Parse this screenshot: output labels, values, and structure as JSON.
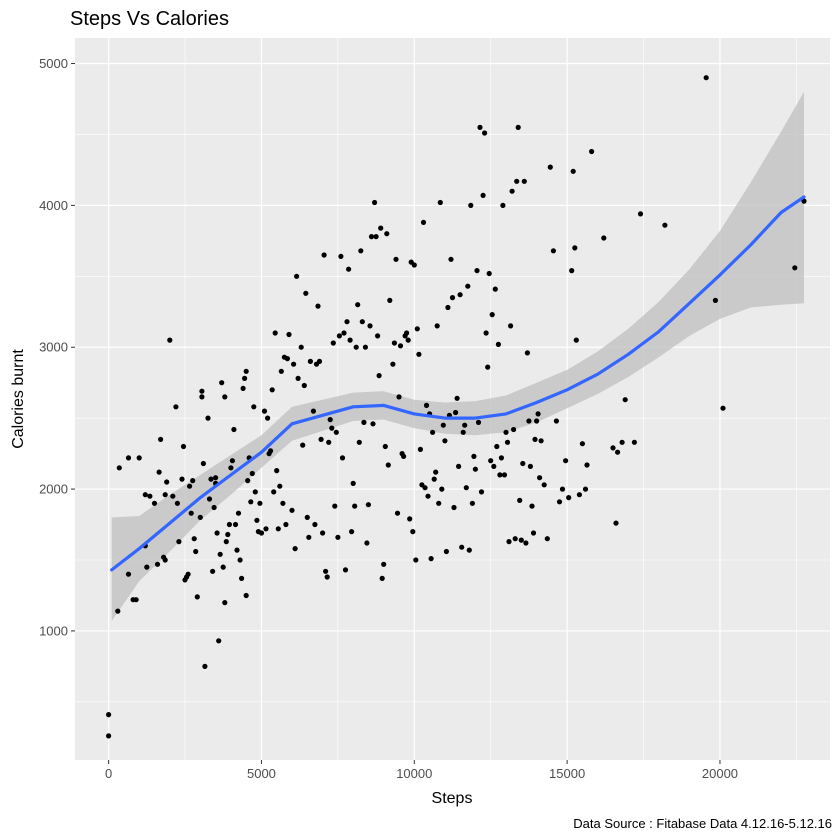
{
  "chart_data": {
    "type": "scatter",
    "title": "Steps Vs Calories",
    "xlabel": "Steps",
    "ylabel": "Calories burnt",
    "caption": "Data Source : Fitabase Data 4.12.16-5.12.16",
    "xlim": [
      -1100,
      23600
    ],
    "ylim": [
      90,
      5180
    ],
    "x_ticks": [
      0,
      5000,
      10000,
      15000,
      20000
    ],
    "y_ticks": [
      1000,
      2000,
      3000,
      4000,
      5000
    ],
    "grid": true,
    "legend": "none",
    "colors": {
      "panel": "#ebebeb",
      "grid": "#ffffff",
      "points": "#000000",
      "smooth_line": "#3366ff",
      "confidence_band": "#bfbfbf"
    },
    "points": [
      [
        0,
        260
      ],
      [
        0,
        410
      ],
      [
        300,
        1140
      ],
      [
        350,
        2150
      ],
      [
        650,
        1400
      ],
      [
        650,
        2220
      ],
      [
        800,
        1220
      ],
      [
        900,
        1220
      ],
      [
        1000,
        2220
      ],
      [
        1200,
        1960
      ],
      [
        1200,
        1600
      ],
      [
        1250,
        1450
      ],
      [
        1350,
        1950
      ],
      [
        1500,
        1900
      ],
      [
        1600,
        1470
      ],
      [
        1650,
        2120
      ],
      [
        1700,
        2350
      ],
      [
        1800,
        1520
      ],
      [
        1850,
        1500
      ],
      [
        1850,
        1960
      ],
      [
        1900,
        2050
      ],
      [
        2000,
        3050
      ],
      [
        2100,
        1950
      ],
      [
        2200,
        2580
      ],
      [
        2250,
        1900
      ],
      [
        2300,
        1630
      ],
      [
        2400,
        2070
      ],
      [
        2450,
        2300
      ],
      [
        2500,
        1360
      ],
      [
        2550,
        1380
      ],
      [
        2600,
        1400
      ],
      [
        2650,
        2020
      ],
      [
        2700,
        1830
      ],
      [
        2750,
        2060
      ],
      [
        2800,
        1650
      ],
      [
        2850,
        1560
      ],
      [
        2900,
        1240
      ],
      [
        3000,
        1800
      ],
      [
        3050,
        2690
      ],
      [
        3050,
        2650
      ],
      [
        3100,
        2180
      ],
      [
        3150,
        750
      ],
      [
        3250,
        2500
      ],
      [
        3300,
        1930
      ],
      [
        3350,
        2070
      ],
      [
        3400,
        1420
      ],
      [
        3450,
        1870
      ],
      [
        3500,
        2040
      ],
      [
        3500,
        2080
      ],
      [
        3550,
        1690
      ],
      [
        3600,
        930
      ],
      [
        3650,
        1540
      ],
      [
        3700,
        2750
      ],
      [
        3750,
        1450
      ],
      [
        3800,
        2650
      ],
      [
        3800,
        1200
      ],
      [
        3850,
        1630
      ],
      [
        3900,
        1680
      ],
      [
        3950,
        1750
      ],
      [
        4000,
        2150
      ],
      [
        4050,
        2200
      ],
      [
        4100,
        2420
      ],
      [
        4150,
        1750
      ],
      [
        4200,
        1570
      ],
      [
        4250,
        1830
      ],
      [
        4300,
        1500
      ],
      [
        4350,
        1370
      ],
      [
        4400,
        2710
      ],
      [
        4450,
        2780
      ],
      [
        4500,
        2830
      ],
      [
        4500,
        1250
      ],
      [
        4550,
        2060
      ],
      [
        4600,
        2220
      ],
      [
        4650,
        1910
      ],
      [
        4700,
        2110
      ],
      [
        4750,
        2580
      ],
      [
        4800,
        1980
      ],
      [
        4850,
        1780
      ],
      [
        4900,
        1700
      ],
      [
        4950,
        1900
      ],
      [
        5000,
        1690
      ],
      [
        5100,
        2550
      ],
      [
        5150,
        1720
      ],
      [
        5200,
        2500
      ],
      [
        5250,
        2250
      ],
      [
        5300,
        2270
      ],
      [
        5350,
        2700
      ],
      [
        5400,
        1980
      ],
      [
        5450,
        3100
      ],
      [
        5500,
        2130
      ],
      [
        5550,
        1720
      ],
      [
        5600,
        2020
      ],
      [
        5650,
        2830
      ],
      [
        5700,
        1900
      ],
      [
        5750,
        2930
      ],
      [
        5800,
        1750
      ],
      [
        5850,
        2920
      ],
      [
        5900,
        3090
      ],
      [
        6000,
        1850
      ],
      [
        6050,
        2880
      ],
      [
        6100,
        1580
      ],
      [
        6150,
        3500
      ],
      [
        6200,
        2780
      ],
      [
        6300,
        3000
      ],
      [
        6350,
        2310
      ],
      [
        6400,
        2730
      ],
      [
        6450,
        3380
      ],
      [
        6500,
        1800
      ],
      [
        6550,
        1660
      ],
      [
        6600,
        2900
      ],
      [
        6700,
        2550
      ],
      [
        6750,
        1750
      ],
      [
        6800,
        2880
      ],
      [
        6850,
        3290
      ],
      [
        6900,
        2900
      ],
      [
        6950,
        2350
      ],
      [
        7000,
        1690
      ],
      [
        7050,
        3650
      ],
      [
        7100,
        1420
      ],
      [
        7150,
        1380
      ],
      [
        7200,
        2330
      ],
      [
        7250,
        2490
      ],
      [
        7300,
        2430
      ],
      [
        7350,
        3030
      ],
      [
        7400,
        1880
      ],
      [
        7450,
        2400
      ],
      [
        7500,
        1660
      ],
      [
        7550,
        3080
      ],
      [
        7600,
        3640
      ],
      [
        7650,
        2220
      ],
      [
        7700,
        3100
      ],
      [
        7750,
        1430
      ],
      [
        7800,
        3180
      ],
      [
        7850,
        3550
      ],
      [
        7900,
        3050
      ],
      [
        7950,
        1700
      ],
      [
        8000,
        2040
      ],
      [
        8050,
        1880
      ],
      [
        8100,
        3000
      ],
      [
        8150,
        3300
      ],
      [
        8200,
        2330
      ],
      [
        8250,
        3680
      ],
      [
        8300,
        3180
      ],
      [
        8350,
        2470
      ],
      [
        8400,
        3000
      ],
      [
        8450,
        1620
      ],
      [
        8500,
        1890
      ],
      [
        8550,
        3150
      ],
      [
        8600,
        3780
      ],
      [
        8650,
        2460
      ],
      [
        8700,
        4020
      ],
      [
        8750,
        3780
      ],
      [
        8800,
        3080
      ],
      [
        8850,
        2800
      ],
      [
        8900,
        3840
      ],
      [
        8950,
        1370
      ],
      [
        9000,
        1470
      ],
      [
        9050,
        2300
      ],
      [
        9100,
        3800
      ],
      [
        9150,
        2170
      ],
      [
        9200,
        3330
      ],
      [
        9300,
        2880
      ],
      [
        9350,
        3030
      ],
      [
        9400,
        3620
      ],
      [
        9450,
        1830
      ],
      [
        9500,
        2650
      ],
      [
        9550,
        3010
      ],
      [
        9600,
        2250
      ],
      [
        9650,
        2230
      ],
      [
        9700,
        3080
      ],
      [
        9750,
        3100
      ],
      [
        9800,
        3050
      ],
      [
        9850,
        1790
      ],
      [
        9900,
        3600
      ],
      [
        9950,
        1700
      ],
      [
        10000,
        3580
      ],
      [
        10050,
        1500
      ],
      [
        10100,
        3130
      ],
      [
        10150,
        2950
      ],
      [
        10200,
        2280
      ],
      [
        10250,
        2030
      ],
      [
        10300,
        3880
      ],
      [
        10350,
        2010
      ],
      [
        10400,
        2590
      ],
      [
        10450,
        1950
      ],
      [
        10500,
        2530
      ],
      [
        10550,
        1510
      ],
      [
        10600,
        2400
      ],
      [
        10650,
        2070
      ],
      [
        10700,
        2120
      ],
      [
        10750,
        3150
      ],
      [
        10800,
        1900
      ],
      [
        10850,
        4020
      ],
      [
        10900,
        2000
      ],
      [
        10950,
        2450
      ],
      [
        11000,
        2340
      ],
      [
        11050,
        1560
      ],
      [
        11100,
        3280
      ],
      [
        11150,
        2520
      ],
      [
        11200,
        3620
      ],
      [
        11250,
        3350
      ],
      [
        11300,
        1870
      ],
      [
        11350,
        2540
      ],
      [
        11400,
        2640
      ],
      [
        11450,
        2160
      ],
      [
        11500,
        3370
      ],
      [
        11550,
        1590
      ],
      [
        11600,
        2400
      ],
      [
        11650,
        2450
      ],
      [
        11700,
        2010
      ],
      [
        11750,
        3430
      ],
      [
        11800,
        1570
      ],
      [
        11850,
        4000
      ],
      [
        11900,
        1900
      ],
      [
        11950,
        2230
      ],
      [
        12000,
        2140
      ],
      [
        12050,
        3540
      ],
      [
        12100,
        2470
      ],
      [
        12150,
        4550
      ],
      [
        12200,
        1980
      ],
      [
        12250,
        4070
      ],
      [
        12300,
        4510
      ],
      [
        12350,
        3100
      ],
      [
        12400,
        2860
      ],
      [
        12450,
        3520
      ],
      [
        12500,
        2200
      ],
      [
        12550,
        3230
      ],
      [
        12600,
        2160
      ],
      [
        12650,
        3410
      ],
      [
        12700,
        2300
      ],
      [
        12750,
        3020
      ],
      [
        12800,
        2100
      ],
      [
        12850,
        2220
      ],
      [
        12900,
        4000
      ],
      [
        12950,
        2100
      ],
      [
        13000,
        2400
      ],
      [
        13050,
        2330
      ],
      [
        13100,
        1630
      ],
      [
        13150,
        3150
      ],
      [
        13200,
        4100
      ],
      [
        13250,
        2420
      ],
      [
        13300,
        1650
      ],
      [
        13350,
        4170
      ],
      [
        13400,
        4550
      ],
      [
        13450,
        1920
      ],
      [
        13500,
        1640
      ],
      [
        13550,
        2180
      ],
      [
        13600,
        4170
      ],
      [
        13650,
        1620
      ],
      [
        13700,
        2960
      ],
      [
        13750,
        2480
      ],
      [
        13800,
        2160
      ],
      [
        13850,
        1880
      ],
      [
        13900,
        1690
      ],
      [
        13950,
        2350
      ],
      [
        14000,
        2480
      ],
      [
        14050,
        2530
      ],
      [
        14100,
        2080
      ],
      [
        14150,
        2340
      ],
      [
        14250,
        2030
      ],
      [
        14350,
        1650
      ],
      [
        14450,
        4270
      ],
      [
        14550,
        3680
      ],
      [
        14650,
        2480
      ],
      [
        14750,
        1910
      ],
      [
        14850,
        2000
      ],
      [
        14950,
        2200
      ],
      [
        15050,
        1940
      ],
      [
        15150,
        3540
      ],
      [
        15200,
        4240
      ],
      [
        15250,
        3700
      ],
      [
        15300,
        3050
      ],
      [
        15400,
        1960
      ],
      [
        15500,
        2320
      ],
      [
        15600,
        2000
      ],
      [
        15650,
        2170
      ],
      [
        15800,
        4380
      ],
      [
        16200,
        3770
      ],
      [
        16500,
        2290
      ],
      [
        16600,
        1760
      ],
      [
        16650,
        2260
      ],
      [
        16800,
        2330
      ],
      [
        16900,
        2630
      ],
      [
        17200,
        2330
      ],
      [
        17400,
        3940
      ],
      [
        18200,
        3860
      ],
      [
        19550,
        4900
      ],
      [
        19850,
        3330
      ],
      [
        20100,
        2570
      ],
      [
        22450,
        3560
      ],
      [
        22750,
        4030
      ]
    ],
    "smooth": {
      "x": [
        100,
        1000,
        2000,
        3000,
        4000,
        5000,
        6000,
        7000,
        8000,
        9000,
        10000,
        11000,
        12000,
        13000,
        14000,
        15000,
        16000,
        17000,
        18000,
        19000,
        20000,
        21000,
        22000,
        22750
      ],
      "y": [
        1430,
        1580,
        1760,
        1940,
        2100,
        2260,
        2460,
        2520,
        2580,
        2590,
        2530,
        2500,
        2500,
        2530,
        2610,
        2700,
        2810,
        2950,
        3110,
        3310,
        3510,
        3720,
        3950,
        4060
      ],
      "lower": [
        1070,
        1350,
        1560,
        1780,
        1960,
        2150,
        2340,
        2410,
        2480,
        2490,
        2430,
        2390,
        2380,
        2400,
        2470,
        2570,
        2670,
        2790,
        2930,
        3080,
        3200,
        3280,
        3300,
        3310
      ],
      "upper": [
        1800,
        1810,
        1960,
        2100,
        2240,
        2380,
        2580,
        2630,
        2680,
        2690,
        2630,
        2610,
        2620,
        2660,
        2750,
        2840,
        2970,
        3130,
        3320,
        3550,
        3820,
        4160,
        4520,
        4800
      ]
    }
  }
}
